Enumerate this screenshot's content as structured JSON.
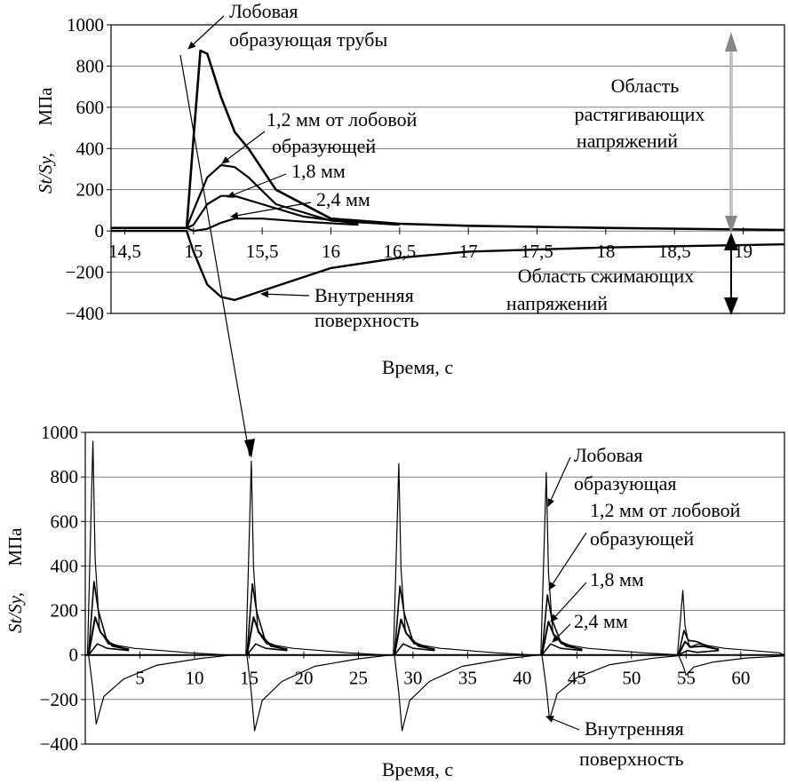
{
  "chart_data": [
    {
      "type": "line",
      "xlabel": "Время, с",
      "ylabel_main": "St/Sy,",
      "ylabel_unit": "МПа",
      "xlim": [
        14.4,
        19.3
      ],
      "ylim": [
        -400,
        1000
      ],
      "x_ticks": [
        "14,5",
        "15",
        "15,5",
        "16",
        "16,5",
        "17",
        "17,5",
        "18",
        "18,5",
        "19"
      ],
      "x_tick_values": [
        14.5,
        15,
        15.5,
        16,
        16.5,
        17,
        17.5,
        18,
        18.5,
        19
      ],
      "y_ticks": [
        1000,
        800,
        600,
        400,
        200,
        0,
        -200,
        -400
      ],
      "series": [
        {
          "name": "Лобовая образующая трубы",
          "x": [
            14.4,
            14.95,
            15.0,
            15.05,
            15.1,
            15.2,
            15.3,
            15.4,
            15.6,
            16.0,
            16.5,
            17.0,
            18.0,
            19.3
          ],
          "y": [
            15,
            15,
            450,
            875,
            860,
            650,
            480,
            400,
            200,
            60,
            35,
            25,
            15,
            5
          ]
        },
        {
          "name": "1,2 мм от лобовой образующей",
          "x": [
            14.4,
            14.95,
            15.0,
            15.1,
            15.2,
            15.3,
            15.4,
            15.6,
            16.0,
            16.5
          ],
          "y": [
            15,
            15,
            100,
            260,
            320,
            310,
            260,
            130,
            50,
            30
          ]
        },
        {
          "name": "1,8 мм",
          "x": [
            14.4,
            14.95,
            15.0,
            15.1,
            15.2,
            15.3,
            15.5,
            15.8,
            16.2
          ],
          "y": [
            15,
            15,
            30,
            130,
            170,
            170,
            130,
            70,
            35
          ]
        },
        {
          "name": "2,4 мм",
          "x": [
            14.4,
            14.95,
            15.0,
            15.1,
            15.2,
            15.3,
            15.5,
            15.8,
            16.2
          ],
          "y": [
            15,
            15,
            0,
            10,
            40,
            60,
            60,
            45,
            30
          ]
        },
        {
          "name": "Внутренняя поверхность",
          "x": [
            14.4,
            14.95,
            15.0,
            15.1,
            15.2,
            15.3,
            15.5,
            16.0,
            16.5,
            17.0,
            18.0,
            19.3
          ],
          "y": [
            0,
            0,
            -100,
            -260,
            -320,
            -335,
            -290,
            -180,
            -130,
            -100,
            -80,
            -65
          ]
        }
      ],
      "annotations": {
        "front": "Лобовая",
        "front2": "образующая трубы",
        "mm12_a": "1,2 мм от лобовой",
        "mm12_b": "образующей",
        "mm18": "1,8 мм",
        "mm24": "2,4 мм",
        "inner_a": "Внутренняя",
        "inner_b": "поверхность",
        "tension_a": "Область",
        "tension_b": "растягивающих",
        "tension_c": "напряжений",
        "compress_a": "Область сжимающих",
        "compress_b": "напряжений"
      }
    },
    {
      "type": "line",
      "xlabel": "Время, с",
      "ylabel_main": "St/Sy,",
      "ylabel_unit": "МПа",
      "xlim": [
        0,
        64
      ],
      "ylim": [
        -400,
        1000
      ],
      "x_ticks": [
        "5",
        "10",
        "15",
        "20",
        "25",
        "30",
        "35",
        "40",
        "45",
        "50",
        "55",
        "60"
      ],
      "x_tick_values": [
        5,
        10,
        15,
        20,
        25,
        30,
        35,
        40,
        45,
        50,
        55,
        60
      ],
      "y_ticks": [
        1000,
        800,
        600,
        400,
        200,
        0,
        -200,
        -400
      ],
      "cycles": [
        {
          "t0": 0.5,
          "peak": 960,
          "mm12": 330,
          "mm18": 170,
          "mm24": 50,
          "inner": -310
        },
        {
          "t0": 15,
          "peak": 870,
          "mm12": 320,
          "mm18": 170,
          "mm24": 50,
          "inner": -340
        },
        {
          "t0": 28.5,
          "peak": 860,
          "mm12": 310,
          "mm18": 160,
          "mm24": 50,
          "inner": -340
        },
        {
          "t0": 42,
          "peak": 820,
          "mm12": 270,
          "mm18": 150,
          "mm24": 50,
          "inner": -290
        },
        {
          "t0": 54.5,
          "peak": 290,
          "mm12": 110,
          "mm18": 60,
          "mm24": 20,
          "inner": -90
        }
      ],
      "annotations": {
        "front_a": "Лобовая",
        "front_b": "образующая",
        "mm12_a": "1,2 мм от лобовой",
        "mm12_b": "образующей",
        "mm18": "1,8 мм",
        "mm24": "2,4 мм",
        "inner_a": "Внутренняя",
        "inner_b": "поверхность"
      }
    }
  ]
}
